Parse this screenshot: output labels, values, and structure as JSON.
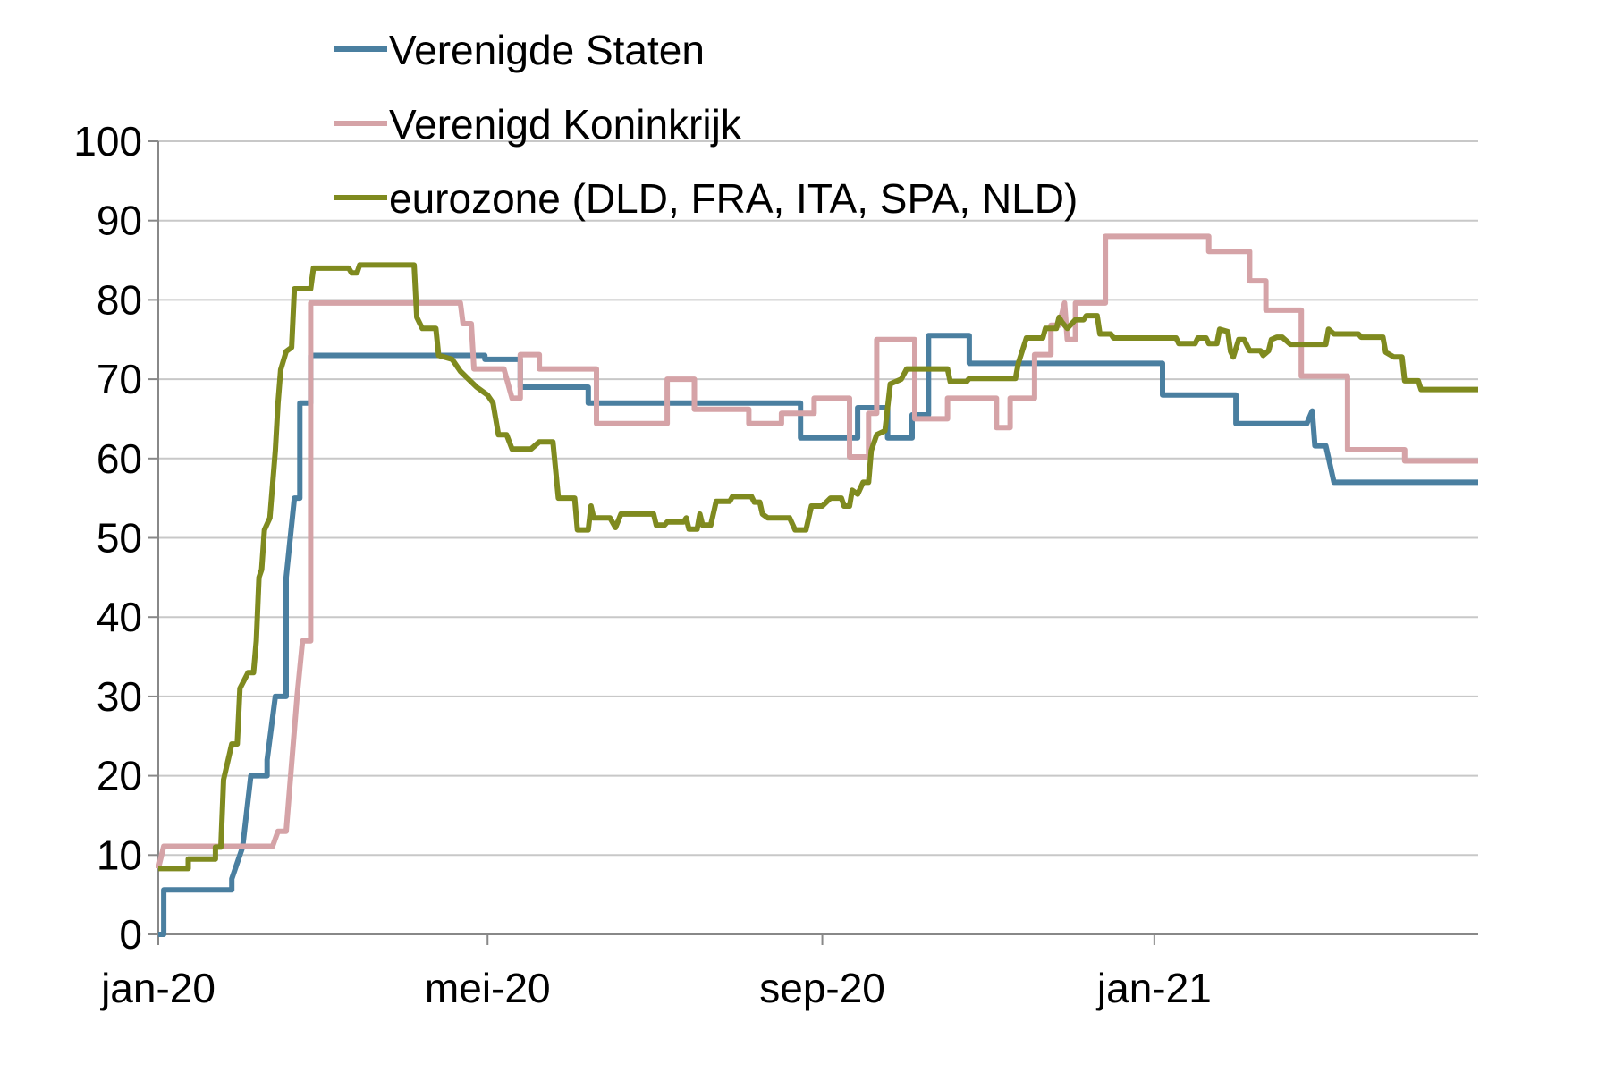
{
  "chart_data": {
    "type": "line",
    "title": "",
    "xlabel": "",
    "ylabel": "",
    "ylim": [
      0,
      100
    ],
    "yticks": [
      0,
      10,
      20,
      30,
      40,
      50,
      60,
      70,
      80,
      90,
      100
    ],
    "xlim": [
      "2020-01-01",
      "2021-04-30"
    ],
    "xtick_labels": [
      {
        "label": "jan-20",
        "date": "2020-01-01"
      },
      {
        "label": "mei-20",
        "date": "2020-05-01"
      },
      {
        "label": "sep-20",
        "date": "2020-09-01"
      },
      {
        "label": "jan-21",
        "date": "2021-01-01"
      }
    ],
    "grid": "horizontal",
    "legend": "top",
    "series": [
      {
        "name": "Verenigde Staten",
        "color": "#4a7fa0",
        "points": [
          [
            "2020-01-01",
            0
          ],
          [
            "2020-01-03",
            0
          ],
          [
            "2020-01-03",
            5.6
          ],
          [
            "2020-01-28",
            5.6
          ],
          [
            "2020-01-28",
            7
          ],
          [
            "2020-02-01",
            11
          ],
          [
            "2020-02-04",
            20
          ],
          [
            "2020-02-10",
            20
          ],
          [
            "2020-02-10",
            22
          ],
          [
            "2020-02-13",
            30
          ],
          [
            "2020-02-17",
            30
          ],
          [
            "2020-02-17",
            45
          ],
          [
            "2020-02-20",
            55
          ],
          [
            "2020-02-22",
            55
          ],
          [
            "2020-02-22",
            67
          ],
          [
            "2020-02-26",
            67
          ],
          [
            "2020-02-26",
            73
          ],
          [
            "2020-04-30",
            73
          ],
          [
            "2020-04-30",
            72.5
          ],
          [
            "2020-05-13",
            72.5
          ],
          [
            "2020-05-13",
            69
          ],
          [
            "2020-06-07",
            69
          ],
          [
            "2020-06-07",
            67
          ],
          [
            "2020-08-24",
            67
          ],
          [
            "2020-08-24",
            62.6
          ],
          [
            "2020-09-14",
            62.6
          ],
          [
            "2020-09-14",
            66.4
          ],
          [
            "2020-09-25",
            66.4
          ],
          [
            "2020-09-25",
            62.6
          ],
          [
            "2020-10-04",
            62.6
          ],
          [
            "2020-10-04",
            65.5
          ],
          [
            "2020-10-10",
            65.5
          ],
          [
            "2020-10-10",
            75.5
          ],
          [
            "2020-10-25",
            75.5
          ],
          [
            "2020-10-25",
            72
          ],
          [
            "2021-01-04",
            72
          ],
          [
            "2021-01-04",
            68
          ],
          [
            "2021-01-31",
            68
          ],
          [
            "2021-01-31",
            64.4
          ],
          [
            "2021-02-26",
            64.4
          ],
          [
            "2021-02-28",
            66
          ],
          [
            "2021-03-01",
            61.6
          ],
          [
            "2021-03-05",
            61.6
          ],
          [
            "2021-03-08",
            57
          ],
          [
            "2021-04-30",
            57
          ]
        ]
      },
      {
        "name": "Verenigd Koninkrijk",
        "color": "#d5a3a7",
        "points": [
          [
            "2020-01-01",
            8.3
          ],
          [
            "2020-01-03",
            11.1
          ],
          [
            "2020-02-12",
            11.1
          ],
          [
            "2020-02-14",
            13
          ],
          [
            "2020-02-17",
            13
          ],
          [
            "2020-02-21",
            30
          ],
          [
            "2020-02-23",
            37
          ],
          [
            "2020-02-26",
            37
          ],
          [
            "2020-02-26",
            79.6
          ],
          [
            "2020-04-21",
            79.6
          ],
          [
            "2020-04-22",
            77
          ],
          [
            "2020-04-25",
            77
          ],
          [
            "2020-04-26",
            71.3
          ],
          [
            "2020-05-07",
            71.3
          ],
          [
            "2020-05-10",
            67.6
          ],
          [
            "2020-05-13",
            67.6
          ],
          [
            "2020-05-13",
            73.1
          ],
          [
            "2020-05-20",
            73.1
          ],
          [
            "2020-05-20",
            71.3
          ],
          [
            "2020-06-10",
            71.3
          ],
          [
            "2020-06-10",
            64.4
          ],
          [
            "2020-07-06",
            64.4
          ],
          [
            "2020-07-06",
            70
          ],
          [
            "2020-07-16",
            70
          ],
          [
            "2020-07-16",
            66.2
          ],
          [
            "2020-08-05",
            66.2
          ],
          [
            "2020-08-05",
            64.4
          ],
          [
            "2020-08-17",
            64.4
          ],
          [
            "2020-08-17",
            65.7
          ],
          [
            "2020-08-29",
            65.7
          ],
          [
            "2020-08-29",
            67.6
          ],
          [
            "2020-09-11",
            67.6
          ],
          [
            "2020-09-11",
            60.2
          ],
          [
            "2020-09-18",
            60.2
          ],
          [
            "2020-09-18",
            65.7
          ],
          [
            "2020-09-21",
            65.7
          ],
          [
            "2020-09-21",
            75
          ],
          [
            "2020-10-05",
            75
          ],
          [
            "2020-10-05",
            65
          ],
          [
            "2020-10-17",
            65
          ],
          [
            "2020-10-17",
            67.6
          ],
          [
            "2020-11-04",
            67.6
          ],
          [
            "2020-11-04",
            63.9
          ],
          [
            "2020-11-09",
            63.9
          ],
          [
            "2020-11-09",
            67.6
          ],
          [
            "2020-11-18",
            67.6
          ],
          [
            "2020-11-18",
            73.1
          ],
          [
            "2020-11-24",
            73.1
          ],
          [
            "2020-11-24",
            76.8
          ],
          [
            "2020-11-27",
            76.8
          ],
          [
            "2020-11-29",
            79.6
          ],
          [
            "2020-11-30",
            75
          ],
          [
            "2020-12-03",
            75
          ],
          [
            "2020-12-03",
            79.6
          ],
          [
            "2020-12-14",
            79.6
          ],
          [
            "2020-12-14",
            88
          ],
          [
            "2021-01-21",
            88
          ],
          [
            "2021-01-21",
            86.1
          ],
          [
            "2021-02-05",
            86.1
          ],
          [
            "2021-02-05",
            82.4
          ],
          [
            "2021-02-11",
            82.4
          ],
          [
            "2021-02-11",
            78.7
          ],
          [
            "2021-02-24",
            78.7
          ],
          [
            "2021-02-24",
            70.4
          ],
          [
            "2021-03-13",
            70.4
          ],
          [
            "2021-03-13",
            61.1
          ],
          [
            "2021-04-03",
            61.1
          ],
          [
            "2021-04-03",
            59.7
          ],
          [
            "2021-04-30",
            59.7
          ]
        ]
      },
      {
        "name": "eurozone (DLD, FRA, ITA, SPA, NLD)",
        "color": "#7f8a1f",
        "points": [
          [
            "2020-01-01",
            8.3
          ],
          [
            "2020-01-12",
            8.3
          ],
          [
            "2020-01-12",
            9.5
          ],
          [
            "2020-01-22",
            9.5
          ],
          [
            "2020-01-22",
            11
          ],
          [
            "2020-01-24",
            11
          ],
          [
            "2020-01-25",
            19.5
          ],
          [
            "2020-01-28",
            24
          ],
          [
            "2020-01-30",
            24
          ],
          [
            "2020-01-31",
            31
          ],
          [
            "2020-02-03",
            33
          ],
          [
            "2020-02-05",
            33
          ],
          [
            "2020-02-06",
            37
          ],
          [
            "2020-02-07",
            45
          ],
          [
            "2020-02-08",
            46
          ],
          [
            "2020-02-09",
            51
          ],
          [
            "2020-02-11",
            52.5
          ],
          [
            "2020-02-13",
            61
          ],
          [
            "2020-02-14",
            67
          ],
          [
            "2020-02-15",
            71.2
          ],
          [
            "2020-02-17",
            73.5
          ],
          [
            "2020-02-19",
            74
          ],
          [
            "2020-02-20",
            81.4
          ],
          [
            "2020-02-26",
            81.4
          ],
          [
            "2020-02-27",
            84
          ],
          [
            "2020-03-11",
            84
          ],
          [
            "2020-03-12",
            83.4
          ],
          [
            "2020-03-14",
            83.4
          ],
          [
            "2020-03-15",
            84.4
          ],
          [
            "2020-04-04",
            84.4
          ],
          [
            "2020-04-05",
            77.8
          ],
          [
            "2020-04-07",
            76.4
          ],
          [
            "2020-04-12",
            76.4
          ],
          [
            "2020-04-13",
            73
          ],
          [
            "2020-04-18",
            72.5
          ],
          [
            "2020-04-21",
            71
          ],
          [
            "2020-04-24",
            70
          ],
          [
            "2020-04-27",
            69
          ],
          [
            "2020-05-01",
            68
          ],
          [
            "2020-05-03",
            67
          ],
          [
            "2020-05-05",
            63
          ],
          [
            "2020-05-08",
            63
          ],
          [
            "2020-05-10",
            61.2
          ],
          [
            "2020-05-17",
            61.2
          ],
          [
            "2020-05-20",
            62.1
          ],
          [
            "2020-05-25",
            62.1
          ],
          [
            "2020-05-27",
            55
          ],
          [
            "2020-06-02",
            55
          ],
          [
            "2020-06-03",
            51
          ],
          [
            "2020-06-07",
            51
          ],
          [
            "2020-06-08",
            54
          ],
          [
            "2020-06-09",
            52.5
          ],
          [
            "2020-06-15",
            52.5
          ],
          [
            "2020-06-17",
            51.3
          ],
          [
            "2020-06-19",
            53
          ],
          [
            "2020-07-01",
            53
          ],
          [
            "2020-07-02",
            51.6
          ],
          [
            "2020-07-05",
            51.6
          ],
          [
            "2020-07-06",
            52
          ],
          [
            "2020-07-12",
            52
          ],
          [
            "2020-07-13",
            52.5
          ],
          [
            "2020-07-14",
            51.1
          ],
          [
            "2020-07-17",
            51.1
          ],
          [
            "2020-07-18",
            53
          ],
          [
            "2020-07-19",
            51.6
          ],
          [
            "2020-07-22",
            51.6
          ],
          [
            "2020-07-24",
            54.6
          ],
          [
            "2020-07-29",
            54.6
          ],
          [
            "2020-07-30",
            55.2
          ],
          [
            "2020-08-06",
            55.2
          ],
          [
            "2020-08-07",
            54.5
          ],
          [
            "2020-08-09",
            54.5
          ],
          [
            "2020-08-10",
            53
          ],
          [
            "2020-08-12",
            52.5
          ],
          [
            "2020-08-20",
            52.5
          ],
          [
            "2020-08-22",
            51
          ],
          [
            "2020-08-26",
            51
          ],
          [
            "2020-08-28",
            54
          ],
          [
            "2020-09-01",
            54
          ],
          [
            "2020-09-04",
            55
          ],
          [
            "2020-09-08",
            55
          ],
          [
            "2020-09-09",
            54
          ],
          [
            "2020-09-11",
            54
          ],
          [
            "2020-09-12",
            56
          ],
          [
            "2020-09-14",
            55.5
          ],
          [
            "2020-09-16",
            57
          ],
          [
            "2020-09-18",
            57
          ],
          [
            "2020-09-19",
            61
          ],
          [
            "2020-09-21",
            63
          ],
          [
            "2020-09-24",
            63.5
          ],
          [
            "2020-09-26",
            69.4
          ],
          [
            "2020-09-30",
            70
          ],
          [
            "2020-10-02",
            71.3
          ],
          [
            "2020-10-17",
            71.3
          ],
          [
            "2020-10-18",
            69.7
          ],
          [
            "2020-10-24",
            69.7
          ],
          [
            "2020-10-25",
            70.1
          ],
          [
            "2020-11-11",
            70.1
          ],
          [
            "2020-11-12",
            72
          ],
          [
            "2020-11-15",
            75.2
          ],
          [
            "2020-11-21",
            75.2
          ],
          [
            "2020-11-22",
            76.4
          ],
          [
            "2020-11-26",
            76.4
          ],
          [
            "2020-11-27",
            77.8
          ],
          [
            "2020-11-28",
            77.2
          ],
          [
            "2020-11-30",
            76.4
          ],
          [
            "2020-12-03",
            77.5
          ],
          [
            "2020-12-06",
            77.5
          ],
          [
            "2020-12-07",
            78
          ],
          [
            "2020-12-11",
            78
          ],
          [
            "2020-12-12",
            75.7
          ],
          [
            "2020-12-16",
            75.7
          ],
          [
            "2020-12-17",
            75.2
          ],
          [
            "2021-01-09",
            75.2
          ],
          [
            "2021-01-10",
            74.5
          ],
          [
            "2021-01-16",
            74.5
          ],
          [
            "2021-01-17",
            75.2
          ],
          [
            "2021-01-20",
            75.2
          ],
          [
            "2021-01-21",
            74.5
          ],
          [
            "2021-01-24",
            74.5
          ],
          [
            "2021-01-25",
            76.3
          ],
          [
            "2021-01-28",
            76
          ],
          [
            "2021-01-29",
            73.5
          ],
          [
            "2021-01-30",
            72.8
          ],
          [
            "2021-02-01",
            75
          ],
          [
            "2021-02-03",
            75
          ],
          [
            "2021-02-05",
            73.6
          ],
          [
            "2021-02-09",
            73.6
          ],
          [
            "2021-02-10",
            73
          ],
          [
            "2021-02-12",
            73.6
          ],
          [
            "2021-02-13",
            75
          ],
          [
            "2021-02-15",
            75.3
          ],
          [
            "2021-02-17",
            75.3
          ],
          [
            "2021-02-20",
            74.4
          ],
          [
            "2021-03-05",
            74.4
          ],
          [
            "2021-03-06",
            76.3
          ],
          [
            "2021-03-08",
            75.7
          ],
          [
            "2021-03-17",
            75.7
          ],
          [
            "2021-03-18",
            75.3
          ],
          [
            "2021-03-26",
            75.3
          ],
          [
            "2021-03-27",
            73.4
          ],
          [
            "2021-03-30",
            72.8
          ],
          [
            "2021-04-02",
            72.8
          ],
          [
            "2021-04-03",
            69.8
          ],
          [
            "2021-04-08",
            69.8
          ],
          [
            "2021-04-09",
            68.7
          ],
          [
            "2021-04-30",
            68.7
          ]
        ]
      }
    ]
  }
}
